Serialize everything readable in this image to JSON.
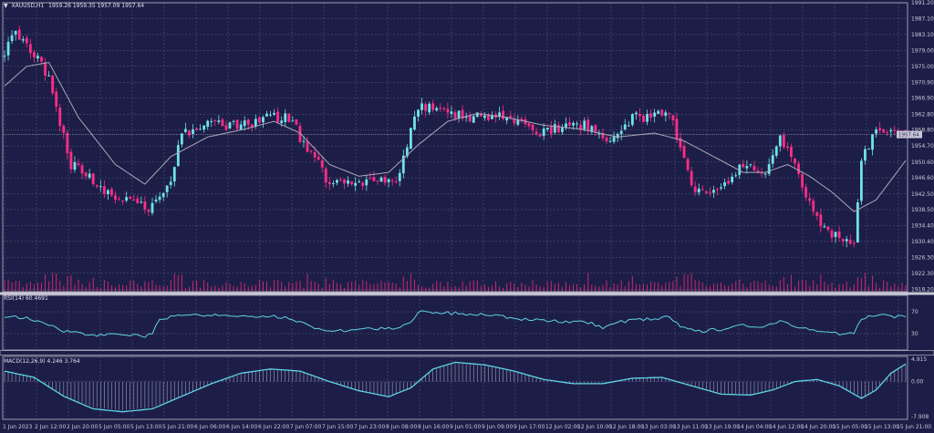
{
  "header": {
    "arrow": "▼",
    "symbol": "XAUUSD,H1",
    "ohlc": "1959.26 1959.35 1957.09 1957.64"
  },
  "colors": {
    "background": "#1d1e47",
    "grid": "#5b5e86",
    "bull": "#6fe3e8",
    "bear": "#ff2d86",
    "ma": "#a8a8b8",
    "indicator": "#5fd4e6"
  },
  "chart_data": [
    {
      "type": "line",
      "subtype": "candlestick",
      "title": "XAUUSD,H1",
      "price_axis_labels": [
        "1991.20",
        "1987.10",
        "1983.10",
        "1979.00",
        "1975.00",
        "1970.90",
        "1966.90",
        "1962.80",
        "1958.80",
        "1954.70",
        "1950.60",
        "1946.60",
        "1942.50",
        "1938.50",
        "1934.40",
        "1930.40",
        "1926.30",
        "1922.30",
        "1918.20"
      ],
      "ylim": [
        1917.6,
        1991.2
      ],
      "current_price": "1957.64",
      "time_labels": [
        "1 Jun 2023",
        "2 Jun 12:00",
        "2 Jun 20:00",
        "5 Jun 05:00",
        "5 Jun 13:00",
        "5 Jun 21:00",
        "6 Jun 06:00",
        "6 Jun 14:00",
        "6 Jun 22:00",
        "7 Jun 07:00",
        "7 Jun 15:00",
        "7 Jun 23:00",
        "8 Jun 08:00",
        "8 Jun 16:00",
        "9 Jun 01:00",
        "9 Jun 09:00",
        "9 Jun 17:00",
        "12 Jun 02:00",
        "12 Jun 10:00",
        "12 Jun 18:00",
        "13 Jun 03:00",
        "13 Jun 11:00",
        "13 Jun 19:00",
        "14 Jun 04:00",
        "14 Jun 12:00",
        "14 Jun 20:00",
        "15 Jun 05:00",
        "15 Jun 13:00",
        "15 Jun 21:00"
      ],
      "close_path": [
        [
          0,
          1979
        ],
        [
          3,
          1983
        ],
        [
          8,
          1978
        ],
        [
          12,
          1972
        ],
        [
          18,
          1950
        ],
        [
          28,
          1943
        ],
        [
          36,
          1940
        ],
        [
          40,
          1939
        ],
        [
          45,
          1946
        ],
        [
          48,
          1958
        ],
        [
          56,
          1961
        ],
        [
          60,
          1960
        ],
        [
          64,
          1960
        ],
        [
          72,
          1962
        ],
        [
          78,
          1962
        ],
        [
          80,
          1957
        ],
        [
          85,
          1950
        ],
        [
          88,
          1945
        ],
        [
          95,
          1945
        ],
        [
          100,
          1947
        ],
        [
          106,
          1945
        ],
        [
          112,
          1965
        ],
        [
          120,
          1963
        ],
        [
          128,
          1962
        ],
        [
          135,
          1962
        ],
        [
          140,
          1960
        ],
        [
          146,
          1958
        ],
        [
          152,
          1960
        ],
        [
          158,
          1960
        ],
        [
          163,
          1956
        ],
        [
          166,
          1958
        ],
        [
          170,
          1962
        ],
        [
          176,
          1962
        ],
        [
          180,
          1964
        ],
        [
          186,
          1945
        ],
        [
          190,
          1942
        ],
        [
          196,
          1945
        ],
        [
          200,
          1950
        ],
        [
          206,
          1947
        ],
        [
          210,
          1957
        ],
        [
          214,
          1950
        ],
        [
          217,
          1942
        ],
        [
          220,
          1936
        ],
        [
          224,
          1932
        ],
        [
          230,
          1930
        ],
        [
          232,
          1952
        ],
        [
          236,
          1958
        ],
        [
          242,
          1958
        ],
        [
          244,
          1957.6
        ]
      ],
      "ma_path": [
        [
          0,
          1970
        ],
        [
          6,
          1975
        ],
        [
          12,
          1976
        ],
        [
          20,
          1962
        ],
        [
          30,
          1950
        ],
        [
          38,
          1945
        ],
        [
          45,
          1952
        ],
        [
          55,
          1957
        ],
        [
          65,
          1959
        ],
        [
          73,
          1961
        ],
        [
          80,
          1958
        ],
        [
          88,
          1950
        ],
        [
          96,
          1947
        ],
        [
          104,
          1948
        ],
        [
          112,
          1955
        ],
        [
          120,
          1961
        ],
        [
          128,
          1963
        ],
        [
          136,
          1962
        ],
        [
          146,
          1960
        ],
        [
          156,
          1959
        ],
        [
          166,
          1957
        ],
        [
          176,
          1958
        ],
        [
          184,
          1956
        ],
        [
          192,
          1952
        ],
        [
          200,
          1948
        ],
        [
          206,
          1948
        ],
        [
          212,
          1950
        ],
        [
          218,
          1947
        ],
        [
          224,
          1943
        ],
        [
          230,
          1938
        ],
        [
          236,
          1941
        ],
        [
          244,
          1951
        ]
      ]
    },
    {
      "type": "line",
      "title": "RSI(14) 60.4691",
      "axis_labels": [
        "70",
        "30"
      ],
      "ylim": [
        0,
        100
      ],
      "levels": [
        70,
        30
      ],
      "path": [
        [
          0,
          62
        ],
        [
          6,
          58
        ],
        [
          10,
          52
        ],
        [
          16,
          34
        ],
        [
          24,
          28
        ],
        [
          32,
          27
        ],
        [
          38,
          26
        ],
        [
          40,
          32
        ],
        [
          42,
          58
        ],
        [
          48,
          62
        ],
        [
          56,
          63
        ],
        [
          64,
          63
        ],
        [
          72,
          62
        ],
        [
          78,
          58
        ],
        [
          82,
          44
        ],
        [
          86,
          34
        ],
        [
          92,
          36
        ],
        [
          98,
          38
        ],
        [
          106,
          40
        ],
        [
          110,
          48
        ],
        [
          112,
          70
        ],
        [
          118,
          68
        ],
        [
          126,
          66
        ],
        [
          134,
          62
        ],
        [
          140,
          56
        ],
        [
          146,
          54
        ],
        [
          152,
          52
        ],
        [
          158,
          50
        ],
        [
          162,
          42
        ],
        [
          166,
          50
        ],
        [
          170,
          55
        ],
        [
          176,
          58
        ],
        [
          180,
          60
        ],
        [
          184,
          40
        ],
        [
          188,
          34
        ],
        [
          194,
          38
        ],
        [
          200,
          46
        ],
        [
          206,
          42
        ],
        [
          210,
          54
        ],
        [
          214,
          44
        ],
        [
          218,
          38
        ],
        [
          222,
          34
        ],
        [
          226,
          30
        ],
        [
          230,
          32
        ],
        [
          232,
          58
        ],
        [
          236,
          64
        ],
        [
          240,
          62
        ],
        [
          244,
          60
        ]
      ]
    },
    {
      "type": "line",
      "title": "MACD(12,26,9) 4.246 3.764",
      "axis_labels": [
        "4.915",
        "0.00",
        "-7.908"
      ],
      "ylim": [
        -9,
        6
      ],
      "path": [
        [
          0,
          2.5
        ],
        [
          8,
          1.0
        ],
        [
          16,
          -3.5
        ],
        [
          24,
          -6.5
        ],
        [
          32,
          -7.2
        ],
        [
          40,
          -6.5
        ],
        [
          48,
          -3.5
        ],
        [
          56,
          -0.5
        ],
        [
          64,
          2.0
        ],
        [
          72,
          3.0
        ],
        [
          80,
          2.5
        ],
        [
          88,
          0.0
        ],
        [
          96,
          -2.2
        ],
        [
          104,
          -3.6
        ],
        [
          110,
          -1.5
        ],
        [
          116,
          3.0
        ],
        [
          122,
          4.6
        ],
        [
          130,
          4.0
        ],
        [
          138,
          2.5
        ],
        [
          146,
          0.5
        ],
        [
          154,
          -0.5
        ],
        [
          162,
          -0.5
        ],
        [
          170,
          0.8
        ],
        [
          178,
          1.0
        ],
        [
          186,
          -1.0
        ],
        [
          194,
          -3.0
        ],
        [
          202,
          -3.2
        ],
        [
          208,
          -2.0
        ],
        [
          214,
          0.0
        ],
        [
          220,
          0.5
        ],
        [
          226,
          -1.0
        ],
        [
          232,
          -4.0
        ],
        [
          236,
          -2.0
        ],
        [
          240,
          2.0
        ],
        [
          244,
          4.2
        ]
      ]
    }
  ]
}
